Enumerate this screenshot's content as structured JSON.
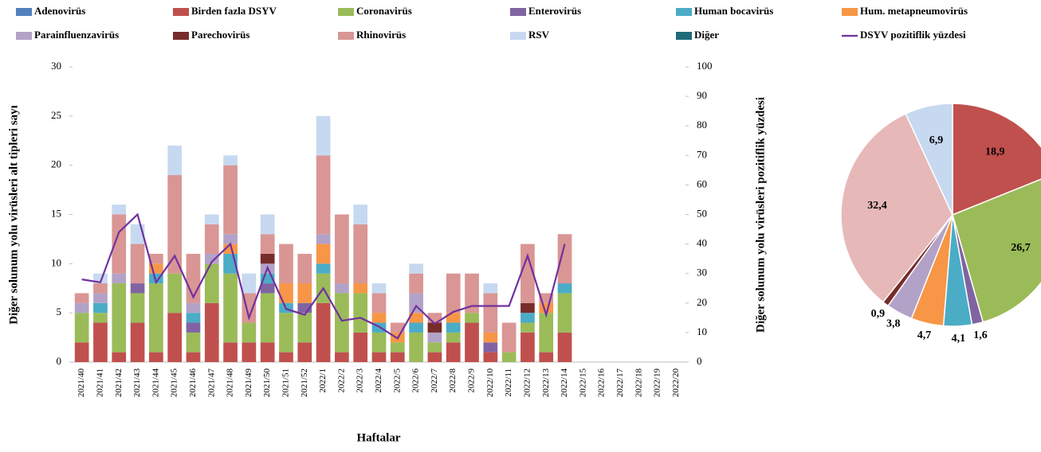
{
  "chart_data": [
    {
      "type": "bar",
      "stacked": true,
      "x_label": "Haftalar",
      "y_label": "Diğer solunum yolu virüsleri alt tipleri sayı",
      "y2_label": "Diğer solunum yolu virüsleri pozitiflik yüzdesi",
      "categories": [
        "2021/40",
        "2021/41",
        "2021/42",
        "2021/43",
        "2021/44",
        "2021/45",
        "2021/46",
        "2021/47",
        "2021/48",
        "2021/49",
        "2021/50",
        "2021/51",
        "2021/52",
        "2022/1",
        "2022/2",
        "2022/3",
        "2022/4",
        "2022/5",
        "2022/6",
        "2022/7",
        "2022/8",
        "2022/9",
        "2022/10",
        "2022/11",
        "2022/12",
        "2022/13",
        "2022/14",
        "2022/15",
        "2022/16",
        "2022/17",
        "2022/18",
        "2022/19",
        "2022/20"
      ],
      "ylim": [
        0,
        30
      ],
      "yticks": [
        0,
        5,
        10,
        15,
        20,
        25,
        30
      ],
      "y2lim": [
        0,
        100
      ],
      "y2ticks": [
        0,
        10,
        20,
        30,
        40,
        50,
        60,
        70,
        80,
        90,
        100
      ],
      "series": [
        {
          "name": "Adenovirüs",
          "color": "#4f81bd",
          "values": [
            0,
            0,
            0,
            0,
            0,
            0,
            0,
            0,
            0,
            0,
            0,
            0,
            0,
            0,
            0,
            0,
            0,
            0,
            0,
            0,
            0,
            0,
            0,
            0,
            0,
            0,
            0,
            null,
            null,
            null,
            null,
            null,
            null
          ]
        },
        {
          "name": "Birden fazla DSYV",
          "color": "#c0504d",
          "values": [
            2,
            4,
            1,
            4,
            1,
            5,
            1,
            6,
            2,
            2,
            2,
            1,
            2,
            6,
            1,
            3,
            1,
            1,
            0,
            1,
            2,
            4,
            1,
            0,
            3,
            1,
            3,
            null,
            null,
            null,
            null,
            null,
            null
          ]
        },
        {
          "name": "Coronavirüs",
          "color": "#9bbb59",
          "values": [
            3,
            1,
            7,
            3,
            7,
            4,
            2,
            4,
            7,
            2,
            5,
            4,
            3,
            3,
            6,
            4,
            2,
            1,
            3,
            1,
            1,
            1,
            0,
            1,
            1,
            4,
            4,
            null,
            null,
            null,
            null,
            null,
            null
          ]
        },
        {
          "name": "Enterovirüs",
          "color": "#8064a2",
          "values": [
            0,
            0,
            0,
            1,
            0,
            0,
            1,
            0,
            0,
            0,
            1,
            0,
            1,
            0,
            0,
            0,
            0,
            0,
            0,
            0,
            0,
            0,
            1,
            0,
            0,
            0,
            0,
            null,
            null,
            null,
            null,
            null,
            null
          ]
        },
        {
          "name": "Human bocavirüs",
          "color": "#4bacc6",
          "values": [
            0,
            1,
            0,
            0,
            1,
            0,
            1,
            0,
            2,
            0,
            1,
            1,
            0,
            1,
            0,
            0,
            1,
            0,
            1,
            0,
            1,
            0,
            0,
            0,
            1,
            0,
            1,
            null,
            null,
            null,
            null,
            null,
            null
          ]
        },
        {
          "name": "Hum. metapneumovirüs",
          "color": "#f79646",
          "values": [
            0,
            0,
            0,
            0,
            1,
            0,
            0,
            0,
            1,
            0,
            0,
            2,
            2,
            2,
            0,
            1,
            1,
            1,
            1,
            0,
            1,
            0,
            1,
            0,
            0,
            1,
            0,
            null,
            null,
            null,
            null,
            null,
            null
          ]
        },
        {
          "name": "Parainfluenzavirüs",
          "color": "#b3a2c7",
          "values": [
            1,
            1,
            1,
            0,
            0,
            0,
            1,
            1,
            1,
            0,
            1,
            0,
            0,
            1,
            1,
            0,
            0,
            0,
            2,
            1,
            0,
            0,
            0,
            0,
            0,
            0,
            0,
            null,
            null,
            null,
            null,
            null,
            null
          ]
        },
        {
          "name": "Parechovirüs",
          "color": "#772c2a",
          "values": [
            0,
            0,
            0,
            0,
            0,
            0,
            0,
            0,
            0,
            0,
            1,
            0,
            0,
            0,
            0,
            0,
            0,
            0,
            0,
            1,
            0,
            0,
            0,
            0,
            1,
            0,
            0,
            null,
            null,
            null,
            null,
            null,
            null
          ]
        },
        {
          "name": "Rhinovirüs",
          "color": "#d99694",
          "values": [
            1,
            1,
            6,
            4,
            1,
            10,
            5,
            3,
            7,
            3,
            2,
            4,
            3,
            8,
            7,
            6,
            2,
            1,
            2,
            1,
            4,
            4,
            4,
            3,
            6,
            1,
            5,
            null,
            null,
            null,
            null,
            null,
            null
          ]
        },
        {
          "name": "RSV",
          "color": "#c6d9f0",
          "values": [
            0,
            1,
            1,
            2,
            0,
            3,
            0,
            1,
            1,
            2,
            2,
            0,
            0,
            4,
            0,
            2,
            1,
            0,
            1,
            0,
            0,
            0,
            1,
            0,
            0,
            0,
            0,
            null,
            null,
            null,
            null,
            null,
            null
          ]
        },
        {
          "name": "Diğer",
          "color": "#1f6b7a",
          "values": [
            0,
            0,
            0,
            0,
            0,
            0,
            0,
            0,
            0,
            0,
            0,
            0,
            0,
            0,
            0,
            0,
            0,
            0,
            0,
            0,
            0,
            0,
            0,
            0,
            0,
            0,
            0,
            null,
            null,
            null,
            null,
            null,
            null
          ]
        },
        {
          "name": "DSYV pozitiflik yüzdesi",
          "color": "#7030a0",
          "type": "line",
          "axis": "y2",
          "values": [
            28,
            27,
            44,
            50,
            27,
            36,
            22,
            34,
            40,
            15,
            32,
            18,
            16,
            25,
            14,
            15,
            12,
            8,
            19,
            13,
            17,
            19,
            19,
            19,
            36,
            16,
            40,
            null,
            null,
            null,
            null,
            null,
            null
          ]
        }
      ]
    },
    {
      "type": "pie",
      "values": [
        18.9,
        26.7,
        1.6,
        4.1,
        4.7,
        3.8,
        0.9,
        32.4,
        6.9
      ],
      "value_labels": [
        "18,9",
        "26,7",
        "1,6",
        "4,1",
        "4,7",
        "3,8",
        "0,9",
        "32,4",
        "6,9"
      ],
      "colors": [
        "#c0504d",
        "#9bbb59",
        "#8064a2",
        "#4bacc6",
        "#f79646",
        "#b3a2c7",
        "#772c2a",
        "#e6b9b8",
        "#c6d9f0"
      ]
    }
  ]
}
